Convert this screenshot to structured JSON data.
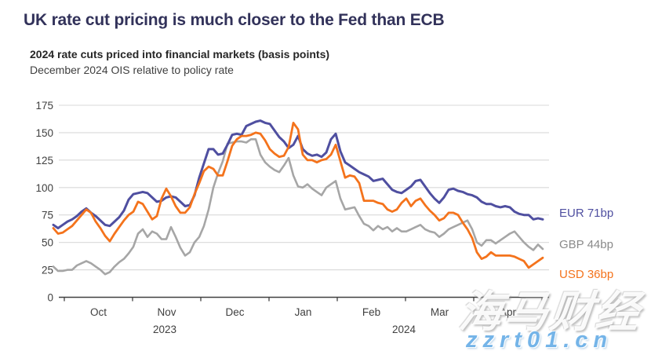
{
  "page_title": "UK rate cut pricing is much closer to the Fed than ECB",
  "watermark": {
    "cn_text": "海马财经",
    "url_text": "zzrt01.cn"
  },
  "colors": {
    "title": "#32325a",
    "eur": "#4f4fa0",
    "gbp_line": "#a6a6a6",
    "gbp_text": "#8a8a8a",
    "usd": "#f4731c",
    "grid": "#d9d9d9",
    "axis": "#404040"
  },
  "chart_data": {
    "type": "line",
    "title": "2024 rate cuts priced into financial markets (basis points)",
    "subtitle": "December 2024 OIS relative to policy rate",
    "ylim": [
      0,
      175
    ],
    "yticks": [
      0,
      25,
      50,
      75,
      100,
      125,
      150,
      175
    ],
    "grid": "horizontal only",
    "legend_position": "right end-of-line labels",
    "x_axis": {
      "month_labels": [
        "Oct",
        "Nov",
        "Dec",
        "Jan",
        "Feb",
        "Mar",
        "Apr"
      ],
      "year_labels": [
        "2023",
        "2024"
      ],
      "span_note": "late Sep 2023 to late Apr 2024"
    },
    "series": [
      {
        "name": "EUR",
        "end_label": "EUR 71bp",
        "last_value": 71,
        "color": "#4f4fa0",
        "label_color": "#4f4fa0",
        "z": 2,
        "width": 3,
        "values": [
          66,
          63,
          66,
          69,
          71,
          74,
          78,
          81,
          77,
          74,
          70,
          66,
          65,
          69,
          73,
          79,
          89,
          94,
          95,
          96,
          95,
          91,
          87,
          88,
          91,
          92,
          91,
          87,
          83,
          84,
          93,
          109,
          122,
          135,
          135,
          130,
          131,
          139,
          148,
          149,
          148,
          156,
          158,
          160,
          161,
          159,
          158,
          152,
          146,
          142,
          136,
          139,
          147,
          135,
          131,
          129,
          130,
          128,
          132,
          144,
          149,
          133,
          123,
          120,
          117,
          114,
          112,
          110,
          106,
          107,
          108,
          103,
          98,
          96,
          95,
          98,
          101,
          106,
          107,
          101,
          95,
          90,
          86,
          91,
          98,
          99,
          97,
          96,
          94,
          93,
          91,
          87,
          85,
          85,
          83,
          82,
          83,
          82,
          78,
          76,
          75,
          75,
          71,
          72,
          71
        ]
      },
      {
        "name": "GBP",
        "end_label": "GBP 44bp",
        "last_value": 44,
        "color": "#a6a6a6",
        "label_color": "#8a8a8a",
        "z": 1,
        "width": 2.6,
        "values": [
          28,
          24,
          24,
          25,
          25,
          29,
          31,
          33,
          31,
          28,
          25,
          21,
          23,
          28,
          32,
          35,
          40,
          46,
          58,
          62,
          55,
          60,
          58,
          53,
          53,
          64,
          55,
          45,
          38,
          41,
          50,
          55,
          65,
          80,
          100,
          113,
          124,
          140,
          141,
          142,
          142,
          141,
          144,
          144,
          130,
          123,
          119,
          116,
          114,
          120,
          127,
          111,
          101,
          100,
          103,
          99,
          96,
          93,
          100,
          103,
          106,
          90,
          80,
          81,
          82,
          74,
          67,
          65,
          61,
          65,
          62,
          64,
          60,
          63,
          60,
          60,
          62,
          64,
          66,
          62,
          60,
          59,
          55,
          58,
          62,
          64,
          66,
          68,
          70,
          62,
          50,
          47,
          52,
          52,
          49,
          52,
          55,
          58,
          60,
          55,
          50,
          46,
          43,
          48,
          44
        ]
      },
      {
        "name": "USD",
        "end_label": "USD 36bp",
        "last_value": 36,
        "color": "#f4731c",
        "label_color": "#f4731c",
        "z": 3,
        "width": 2.8,
        "values": [
          63,
          58,
          59,
          62,
          65,
          70,
          75,
          80,
          77,
          69,
          63,
          56,
          51,
          58,
          64,
          70,
          75,
          78,
          87,
          85,
          78,
          71,
          74,
          90,
          99,
          92,
          83,
          77,
          77,
          82,
          94,
          104,
          115,
          119,
          117,
          111,
          111,
          124,
          138,
          144,
          147,
          147,
          148,
          150,
          149,
          143,
          135,
          131,
          128,
          129,
          137,
          159,
          153,
          130,
          125,
          125,
          123,
          125,
          126,
          130,
          139,
          124,
          109,
          111,
          110,
          104,
          88,
          88,
          88,
          86,
          85,
          80,
          78,
          80,
          86,
          90,
          83,
          88,
          90,
          84,
          79,
          75,
          70,
          72,
          77,
          77,
          75,
          68,
          62,
          54,
          41,
          35,
          37,
          41,
          38,
          38,
          38,
          38,
          37,
          35,
          33,
          27,
          30,
          33,
          36
        ]
      }
    ]
  }
}
